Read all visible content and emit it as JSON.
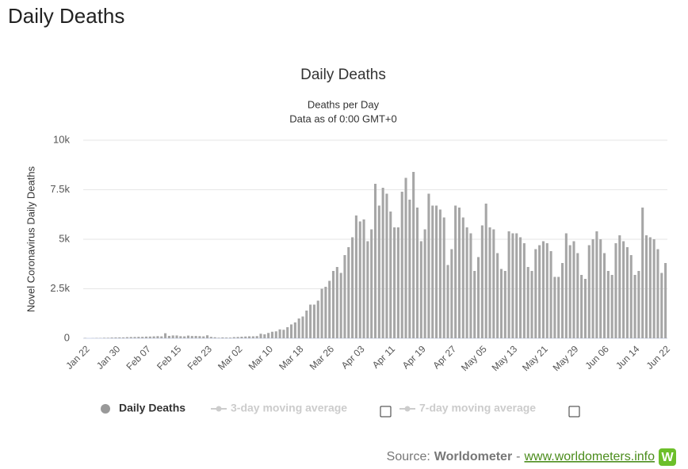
{
  "page_heading": "Daily Deaths",
  "chart_data": {
    "type": "bar",
    "title": "Daily Deaths",
    "subtitle": [
      "Deaths per Day",
      "Data as of 0:00 GMT+0"
    ],
    "y_label": "Novel Coronavirus Daily Deaths",
    "categories": [
      "Jan 22",
      null,
      null,
      null,
      null,
      null,
      null,
      null,
      "Jan 30",
      null,
      null,
      null,
      null,
      null,
      null,
      null,
      "Feb 07",
      null,
      null,
      null,
      null,
      null,
      null,
      null,
      "Feb 15",
      null,
      null,
      null,
      null,
      null,
      null,
      null,
      "Feb 23",
      null,
      null,
      null,
      null,
      null,
      null,
      null,
      "Mar 02",
      null,
      null,
      null,
      null,
      null,
      null,
      null,
      "Mar 10",
      null,
      null,
      null,
      null,
      null,
      null,
      null,
      "Mar 18",
      null,
      null,
      null,
      null,
      null,
      null,
      null,
      "Mar 26",
      null,
      null,
      null,
      null,
      null,
      null,
      null,
      "Apr 03",
      null,
      null,
      null,
      null,
      null,
      null,
      null,
      "Apr 11",
      null,
      null,
      null,
      null,
      null,
      null,
      null,
      "Apr 19",
      null,
      null,
      null,
      null,
      null,
      null,
      null,
      "Apr 27",
      null,
      null,
      null,
      null,
      null,
      null,
      null,
      "May 05",
      null,
      null,
      null,
      null,
      null,
      null,
      null,
      "May 13",
      null,
      null,
      null,
      null,
      null,
      null,
      null,
      "May 21",
      null,
      null,
      null,
      null,
      null,
      null,
      null,
      "May 29",
      null,
      null,
      null,
      null,
      null,
      null,
      null,
      "Jun 06",
      null,
      null,
      null,
      null,
      null,
      null,
      null,
      "Jun 14",
      null,
      null,
      null,
      null,
      null,
      null,
      null,
      "Jun 22"
    ],
    "series": [
      {
        "name": "Daily Deaths",
        "color": "#a6a6a6",
        "values": [
          17,
          0,
          8,
          16,
          14,
          26,
          26,
          38,
          43,
          46,
          45,
          57,
          64,
          66,
          73,
          73,
          86,
          89,
          97,
          108,
          97,
          254,
          121,
          143,
          142,
          106,
          98,
          136,
          115,
          118,
          109,
          97,
          150,
          71,
          52,
          29,
          44,
          37,
          35,
          58,
          67,
          80,
          90,
          100,
          100,
          110,
          230,
          200,
          270,
          330,
          350,
          450,
          430,
          560,
          700,
          800,
          1000,
          1100,
          1400,
          1700,
          1700,
          1900,
          2500,
          2600,
          2900,
          3400,
          3600,
          3300,
          4200,
          4600,
          5100,
          6200,
          5900,
          6000,
          4900,
          5500,
          7800,
          6700,
          7600,
          7300,
          6400,
          5600,
          5600,
          7400,
          8100,
          7000,
          8400,
          6600,
          4900,
          5500,
          7300,
          6700,
          6700,
          6500,
          6100,
          3700,
          4500,
          6700,
          6600,
          6100,
          5600,
          5300,
          3400,
          4100,
          5700,
          6800,
          5600,
          5500,
          4300,
          3500,
          3400,
          5400,
          5300,
          5300,
          5100,
          4800,
          3600,
          3400,
          4500,
          4700,
          4900,
          4800,
          4400,
          3100,
          3100,
          3800,
          5300,
          4700,
          4900,
          4300,
          3200,
          3000,
          4700,
          5000,
          5400,
          5000,
          4300,
          3400,
          3200,
          4800,
          5200,
          4900,
          4600,
          4200,
          3200,
          3400,
          6600,
          5200,
          5100,
          5000,
          4500,
          3300,
          3800
        ]
      },
      {
        "name": "3-day moving average",
        "color": "#cccccc"
      },
      {
        "name": "7-day moving average",
        "color": "#cccccc"
      }
    ],
    "ylim": [
      0,
      10000
    ],
    "yticks": [
      0,
      {
        "value": 2500,
        "label": "2.5k"
      },
      {
        "value": 5000,
        "label": "5k"
      },
      {
        "value": 7500,
        "label": "7.5k"
      },
      {
        "value": 10000,
        "label": "10k"
      }
    ],
    "grid": true
  },
  "source": {
    "prefix": "Source:",
    "name": "Worldometer",
    "separator": "-",
    "link": "www.worldometers.info",
    "logo": "W"
  }
}
